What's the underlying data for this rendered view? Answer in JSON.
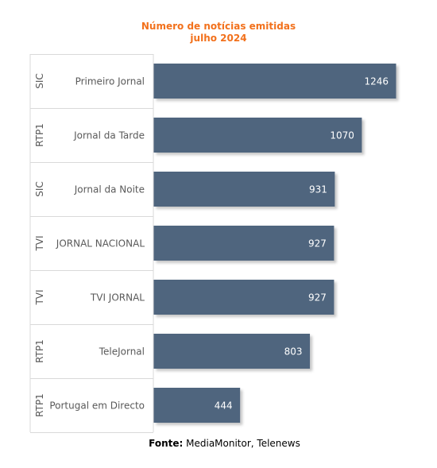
{
  "title": {
    "line1": "Número de notícias emitidas",
    "line2": "julho 2024"
  },
  "source": {
    "label": "Fonte:",
    "text": "MediaMonitor, Telenews"
  },
  "colors": {
    "title": "#f2711c",
    "bar": "#50657e",
    "value_label": "#ffffff",
    "category_label": "#595959",
    "grid": "#d9d9d9"
  },
  "chart_data": {
    "type": "bar",
    "orientation": "horizontal",
    "title": "Número de notícias emitidas julho 2024",
    "categories": [
      {
        "group": "SIC",
        "name": "Primeiro Jornal"
      },
      {
        "group": "RTP1",
        "name": "Jornal da Tarde"
      },
      {
        "group": "SIC",
        "name": "Jornal da Noite"
      },
      {
        "group": "TVI",
        "name": "JORNAL NACIONAL"
      },
      {
        "group": "TVI",
        "name": "TVI JORNAL"
      },
      {
        "group": "RTP1",
        "name": "TeleJornal"
      },
      {
        "group": "RTP1",
        "name": "Portugal em Directo"
      }
    ],
    "values": [
      1246,
      1070,
      931,
      927,
      927,
      803,
      444
    ],
    "xlim": [
      0,
      1300
    ],
    "data_labels": true,
    "grid": false,
    "legend": false
  }
}
